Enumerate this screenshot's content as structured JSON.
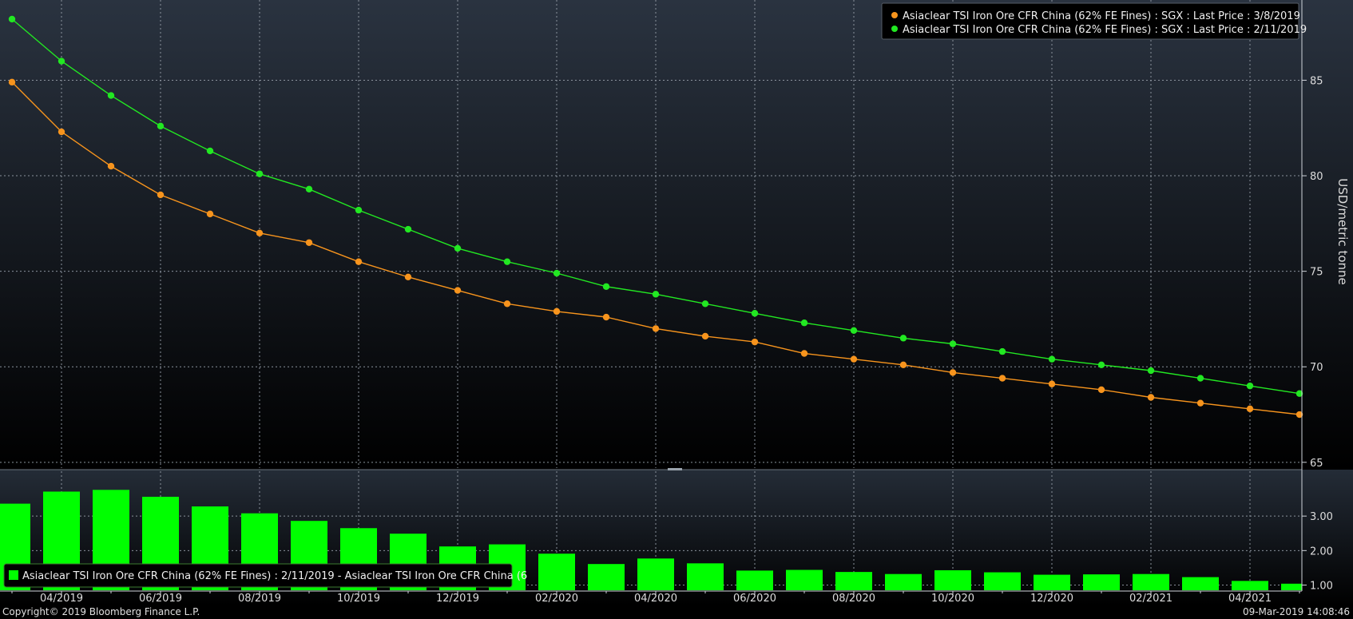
{
  "chart_data": [
    {
      "type": "line",
      "ylabel": "USD/metric tonne",
      "ylim": [
        64.7,
        89.2
      ],
      "y_ticks": [
        "85",
        "80",
        "75",
        "70",
        "65"
      ],
      "y_tick_values": [
        85,
        80,
        75,
        70,
        65
      ],
      "grid": true,
      "legend_position": "top-right",
      "series": [
        {
          "name": "Asiaclear TSI Iron Ore CFR China (62% FE Fines) : SGX : Last Price : 3/8/2019",
          "color": "#f7941d",
          "values": [
            84.9,
            82.3,
            80.5,
            79.0,
            78.0,
            77.0,
            76.5,
            75.5,
            74.7,
            74.0,
            73.3,
            72.9,
            72.6,
            72.0,
            71.6,
            71.3,
            70.7,
            70.4,
            70.1,
            69.7,
            69.4,
            69.1,
            68.8,
            68.4,
            68.1,
            67.8,
            67.5
          ]
        },
        {
          "name": "Asiaclear TSI Iron Ore CFR China (62% FE Fines) : SGX : Last Price : 2/11/2019",
          "color": "#22e822",
          "values": [
            88.2,
            86.0,
            84.2,
            82.6,
            81.3,
            80.1,
            79.3,
            78.2,
            77.2,
            76.2,
            75.5,
            74.9,
            74.2,
            73.8,
            73.3,
            72.8,
            72.3,
            71.9,
            71.5,
            71.2,
            70.8,
            70.4,
            70.1,
            69.8,
            69.4,
            69.0,
            68.6
          ]
        }
      ]
    },
    {
      "type": "bar",
      "ylim": [
        0.85,
        4.3
      ],
      "y_ticks": [
        "3.00",
        "2.00",
        "1.00"
      ],
      "y_tick_values": [
        3,
        2,
        1
      ],
      "grid": true,
      "legend_position": "bottom-left",
      "series": [
        {
          "name": "Asiaclear TSI Iron Ore CFR China (62% FE Fines) : 2/11/2019 - Asiaclear TSI Iron Ore CFR China (6",
          "color": "#00ff00",
          "values": [
            3.36,
            3.71,
            3.76,
            3.56,
            3.28,
            3.08,
            2.86,
            2.65,
            2.49,
            2.12,
            2.18,
            1.91,
            1.61,
            1.77,
            1.63,
            1.42,
            1.44,
            1.38,
            1.32,
            1.43,
            1.37,
            1.3,
            1.31,
            1.32,
            1.23,
            1.12,
            1.04
          ]
        }
      ]
    }
  ],
  "x_ticks": [
    "04/2019",
    "06/2019",
    "08/2019",
    "10/2019",
    "12/2019",
    "02/2020",
    "04/2020",
    "06/2020",
    "08/2020",
    "10/2020",
    "12/2020",
    "02/2021",
    "04/2021"
  ],
  "footer": {
    "copyright": "Copyright© 2019 Bloomberg Finance L.P.",
    "timestamp": "09-Mar-2019 14:08:46"
  }
}
